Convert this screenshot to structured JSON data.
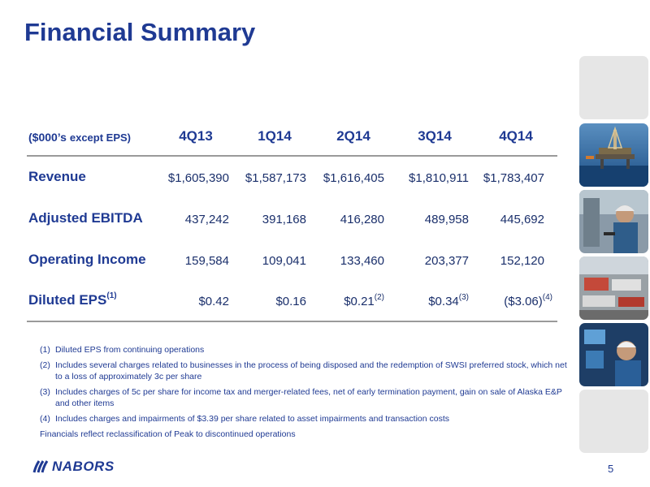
{
  "title": "Financial Summary",
  "table": {
    "unit_label_main": "($000’s",
    "unit_label_sub": "except EPS)",
    "quarters": [
      "4Q13",
      "1Q14",
      "2Q14",
      "3Q14",
      "4Q14"
    ],
    "rows": [
      {
        "label": "Revenue",
        "label_sup": "",
        "values": [
          "$1,605,390",
          "$1,587,173",
          "$1,616,405",
          "$1,810,911",
          "$1,783,407"
        ],
        "sups": [
          "",
          "",
          "",
          "",
          ""
        ]
      },
      {
        "label": "Adjusted EBITDA",
        "label_sup": "",
        "values": [
          "437,242",
          "391,168",
          "416,280",
          "489,958",
          "445,692"
        ],
        "sups": [
          "",
          "",
          "",
          "",
          ""
        ]
      },
      {
        "label": "Operating Income",
        "label_sup": "",
        "values": [
          "159,584",
          "109,041",
          "133,460",
          "203,377",
          "152,120"
        ],
        "sups": [
          "",
          "",
          "",
          "",
          ""
        ]
      },
      {
        "label": "Diluted EPS",
        "label_sup": "(1)",
        "values": [
          "$0.42",
          "$0.16",
          "$0.21",
          "$0.34",
          "($3.06)"
        ],
        "sups": [
          "",
          "",
          "(2)",
          "(3)",
          "(4)"
        ]
      }
    ]
  },
  "footnotes": [
    {
      "num": "(1)",
      "text": "Diluted EPS from continuing operations"
    },
    {
      "num": "(2)",
      "text": "Includes several charges related to businesses in the process of being disposed and the redemption of SWSI preferred stock, which net to a loss of approximately 3c per share"
    },
    {
      "num": "(3)",
      "text": "Includes charges of 5c per share for income tax and merger-related fees, net of early termination payment, gain on sale of Alaska E&P and other items"
    },
    {
      "num": "(4)",
      "text": "Includes charges and impairments of $3.39 per share related to asset impairments and transaction costs"
    }
  ],
  "footer_note": "Financials reflect reclassification of Peak to discontinued operations",
  "logo_text": "NABORS",
  "page_number": "5",
  "colors": {
    "brand": "#1f3a93",
    "rule": "#9a9a9a",
    "tile": "#e6e6e6"
  },
  "photos": [
    "offshore-rig-photo",
    "worker-photo",
    "rig-equipment-photo",
    "control-room-photo"
  ]
}
